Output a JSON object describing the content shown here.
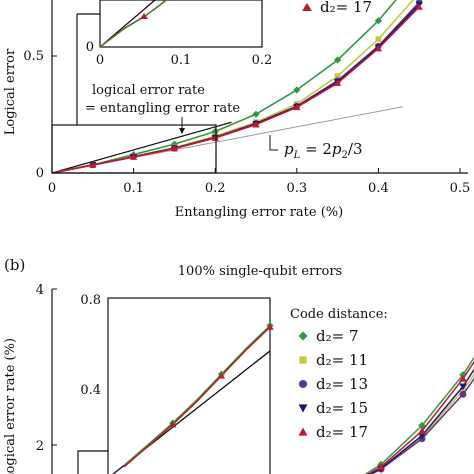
{
  "chart_data": [
    {
      "panel": "(a)",
      "type": "line",
      "title": "",
      "xlabel": "Entangling error rate (%)",
      "ylabel": "Logical error",
      "xlim": [
        0,
        0.5
      ],
      "ylim": [
        0,
        0.75
      ],
      "xticks": [
        "0",
        "0.1",
        "0.2",
        "0.3",
        "0.4",
        "0.5"
      ],
      "yticks": [
        "0",
        "0.5"
      ],
      "legend_visible": [
        "d₂= 17"
      ],
      "annotations": {
        "logical_equals": "logical error rate\n= entangling error rate",
        "pl_formula": "p_L = 2p_2/3"
      },
      "inset": {
        "xticks": [
          "0",
          "0.1",
          "0.2"
        ],
        "yticks": [
          "0"
        ]
      },
      "reference_lines": [
        {
          "name": "logical error rate = entangling error rate",
          "x": [
            0,
            0.22
          ],
          "y": [
            0,
            0.22
          ]
        },
        {
          "name": "p_L = 2p_2/3",
          "x": [
            0,
            0.43
          ],
          "y": [
            0,
            0.287
          ]
        }
      ],
      "series": [
        {
          "name": "d₂= 7",
          "color": "#2e9b3f",
          "marker": "diamond",
          "x": [
            0.05,
            0.1,
            0.15,
            0.2,
            0.25,
            0.3,
            0.35,
            0.4,
            0.45
          ],
          "y": [
            0.035,
            0.08,
            0.125,
            0.18,
            0.255,
            0.36,
            0.49,
            0.66,
            0.87
          ]
        },
        {
          "name": "d₂= 11",
          "color": "#c6c63a",
          "marker": "square",
          "x": [
            0.05,
            0.1,
            0.15,
            0.2,
            0.25,
            0.3,
            0.35,
            0.4,
            0.45
          ],
          "y": [
            0.035,
            0.072,
            0.11,
            0.16,
            0.22,
            0.3,
            0.42,
            0.58,
            0.78
          ]
        },
        {
          "name": "d₂= 13",
          "color": "#5e3392",
          "marker": "circle",
          "x": [
            0.05,
            0.1,
            0.15,
            0.2,
            0.25,
            0.3,
            0.35,
            0.4,
            0.45
          ],
          "y": [
            0.035,
            0.071,
            0.108,
            0.155,
            0.215,
            0.29,
            0.4,
            0.55,
            0.74
          ]
        },
        {
          "name": "d₂= 15",
          "color": "#1c1a78",
          "marker": "triangle-down",
          "x": [
            0.05,
            0.1,
            0.15,
            0.2,
            0.25,
            0.3,
            0.35,
            0.4,
            0.45
          ],
          "y": [
            0.035,
            0.07,
            0.107,
            0.153,
            0.213,
            0.287,
            0.395,
            0.545,
            0.73
          ]
        },
        {
          "name": "d₂= 17",
          "color": "#c21a2a",
          "marker": "triangle-up",
          "x": [
            0.05,
            0.1,
            0.15,
            0.2,
            0.25,
            0.3,
            0.35,
            0.4,
            0.45
          ],
          "y": [
            0.035,
            0.07,
            0.106,
            0.152,
            0.21,
            0.285,
            0.39,
            0.54,
            0.72
          ]
        }
      ]
    },
    {
      "panel": "(b)",
      "type": "line",
      "title": "100% single-qubit errors",
      "xlabel": "",
      "ylabel": "Logical error rate (%)",
      "ylim": [
        1.4,
        4
      ],
      "yticks": [
        "2",
        "4"
      ],
      "legend_title": "Code distance:",
      "legend_placement": "right",
      "inset": {
        "yticks": [
          "0.4",
          "0.8"
        ],
        "ylim": [
          0,
          0.85
        ],
        "xlim": [
          0,
          0.2
        ],
        "reference_line": {
          "x": [
            0,
            0.2
          ],
          "y": [
            0,
            0.6
          ]
        },
        "curve": {
          "x": [
            0.02,
            0.05,
            0.08,
            0.11,
            0.14,
            0.17,
            0.2
          ],
          "y": [
            0.06,
            0.16,
            0.26,
            0.37,
            0.49,
            0.61,
            0.72
          ]
        }
      },
      "series": [
        {
          "name": "d₂= 7",
          "color": "#2e9b3f",
          "marker": "diamond",
          "x": [
            0.24,
            0.3,
            0.36,
            0.42,
            0.48
          ],
          "y": [
            1.42,
            1.75,
            2.25,
            2.9,
            3.72
          ]
        },
        {
          "name": "d₂= 11",
          "color": "#c6c63a",
          "marker": "square",
          "x": [
            0.24,
            0.3,
            0.36,
            0.42,
            0.48
          ],
          "y": [
            1.42,
            1.7,
            2.1,
            2.7,
            3.45
          ]
        },
        {
          "name": "d₂= 13",
          "color": "#5e3392",
          "marker": "circle",
          "x": [
            0.24,
            0.3,
            0.36,
            0.42,
            0.48
          ],
          "y": [
            1.42,
            1.69,
            2.08,
            2.65,
            3.38
          ]
        },
        {
          "name": "d₂= 15",
          "color": "#1c1a78",
          "marker": "triangle-down",
          "x": [
            0.24,
            0.3,
            0.36,
            0.42,
            0.48
          ],
          "y": [
            1.42,
            1.7,
            2.12,
            2.75,
            3.55
          ]
        },
        {
          "name": "d₂= 17",
          "color": "#c21a2a",
          "marker": "triangle-up",
          "x": [
            0.24,
            0.3,
            0.36,
            0.42,
            0.48
          ],
          "y": [
            1.42,
            1.72,
            2.18,
            2.85,
            3.65
          ]
        }
      ]
    }
  ]
}
